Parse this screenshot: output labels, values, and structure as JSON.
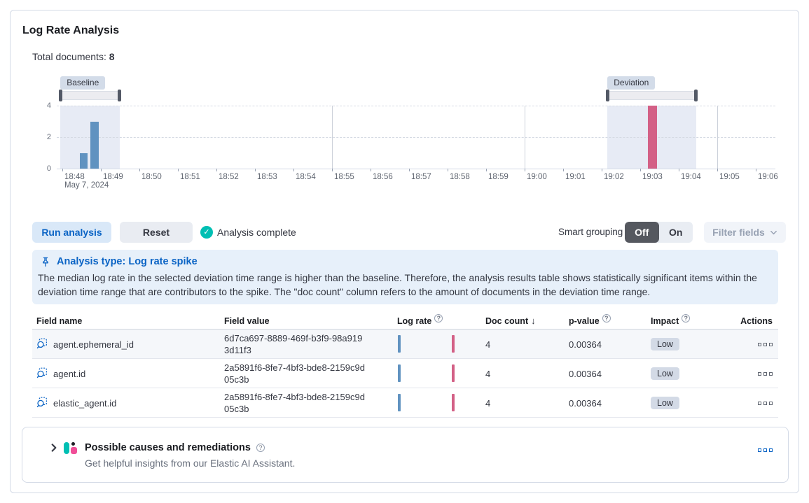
{
  "panel": {
    "title": "Log Rate Analysis",
    "total_documents_label": "Total documents:",
    "total_documents_value": "8"
  },
  "chart_data": {
    "type": "bar",
    "title": "Log rate document count histogram",
    "x_ticks": [
      "18:48",
      "18:49",
      "18:50",
      "18:51",
      "18:52",
      "18:53",
      "18:54",
      "18:55",
      "18:56",
      "18:57",
      "18:58",
      "18:59",
      "19:00",
      "19:01",
      "19:02",
      "19:03",
      "19:04",
      "19:05",
      "19:06"
    ],
    "x_date_label": "May 7, 2024",
    "y_ticks": [
      0,
      2,
      4
    ],
    "ylim": [
      0,
      4
    ],
    "vgrid_ticks": [
      "18:55",
      "19:00",
      "19:05"
    ],
    "bars": [
      {
        "time": "18:48:30",
        "value": 1,
        "series": "baseline",
        "offset": 0.45,
        "width": 11
      },
      {
        "time": "18:49:00",
        "value": 3,
        "series": "baseline",
        "offset": 0.73,
        "width": 12
      },
      {
        "time": "19:03:15",
        "value": 4,
        "series": "deviation",
        "offset": 15.2,
        "width": 13
      }
    ],
    "windows": [
      {
        "name": "baseline",
        "label": "Baseline",
        "from_offset": -0.05,
        "to_offset": 1.49
      },
      {
        "name": "deviation",
        "label": "Deviation",
        "from_offset": 14.15,
        "to_offset": 16.45
      }
    ],
    "colors": {
      "baseline_bar": "#6092C0",
      "deviation_bar": "#D36086",
      "window_fill": "#E7EBF5"
    }
  },
  "toolbar": {
    "run_analysis_label": "Run analysis",
    "reset_label": "Reset",
    "status_label": "Analysis complete",
    "smart_grouping_label": "Smart grouping",
    "off_label": "Off",
    "on_label": "On",
    "filter_fields_label": "Filter fields"
  },
  "callout": {
    "title": "Analysis type: Log rate spike",
    "body": "The median log rate in the selected deviation time range is higher than the baseline. Therefore, the analysis results table shows statistically significant items within the deviation time range that are contributors to the spike. The \"doc count\" column refers to the amount of documents in the deviation time range."
  },
  "table": {
    "headers": {
      "field_name": "Field name",
      "field_value": "Field value",
      "log_rate": "Log rate",
      "doc_count": "Doc count",
      "p_value": "p-value",
      "impact": "Impact",
      "actions": "Actions"
    },
    "rows": [
      {
        "field_name": "agent.ephemeral_id",
        "field_value": "6d7ca697-8889-469f-b3f9-98a9193d11f3",
        "doc_count": "4",
        "p_value": "0.00364",
        "impact": "Low"
      },
      {
        "field_name": "agent.id",
        "field_value": "2a5891f6-8fe7-4bf3-bde8-2159c9d05c3b",
        "doc_count": "4",
        "p_value": "0.00364",
        "impact": "Low"
      },
      {
        "field_name": "elastic_agent.id",
        "field_value": "2a5891f6-8fe7-4bf3-bde8-2159c9d05c3b",
        "doc_count": "4",
        "p_value": "0.00364",
        "impact": "Low"
      }
    ]
  },
  "footer": {
    "title": "Possible causes and remediations",
    "subtitle": "Get helpful insights from our Elastic AI Assistant."
  },
  "icons": {
    "check": "✓",
    "sort_desc": "↓",
    "question": "?",
    "smart_grouping_off_icon": "Off",
    "smart_grouping_on_icon": "On"
  },
  "colors": {
    "primary": "#0B64C5",
    "success": "#00BFB3",
    "badge_bg": "#D3DAE6"
  }
}
